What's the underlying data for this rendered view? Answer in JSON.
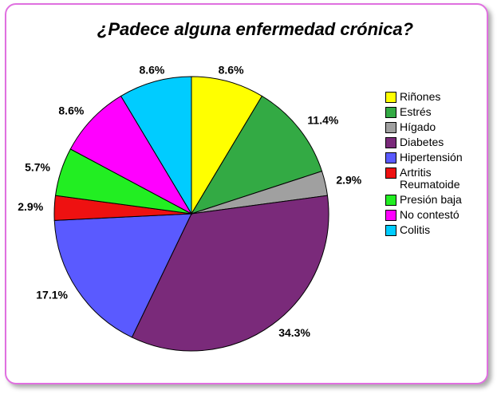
{
  "chart_data": {
    "type": "pie",
    "title": "¿Padece alguna enfermedad crónica?",
    "categories": [
      "Riñones",
      "Estrés",
      "Hígado",
      "Diabetes",
      "Hipertensión",
      "Artritis Reumatoide",
      "Presión baja",
      "No contestó",
      "Colitis"
    ],
    "values": [
      8.6,
      11.4,
      2.9,
      34.3,
      17.1,
      2.9,
      5.7,
      8.6,
      8.6
    ],
    "value_labels": [
      "8.6%",
      "11.4%",
      "2.9%",
      "34.3%",
      "17.1%",
      "2.9%",
      "5.7%",
      "8.6%",
      "8.6%"
    ],
    "colors": [
      "#ffff00",
      "#33aa44",
      "#a0a0a0",
      "#7a2a7a",
      "#5a5aff",
      "#ee1111",
      "#22ee22",
      "#ff00ff",
      "#00ccff"
    ],
    "legend": "right"
  }
}
